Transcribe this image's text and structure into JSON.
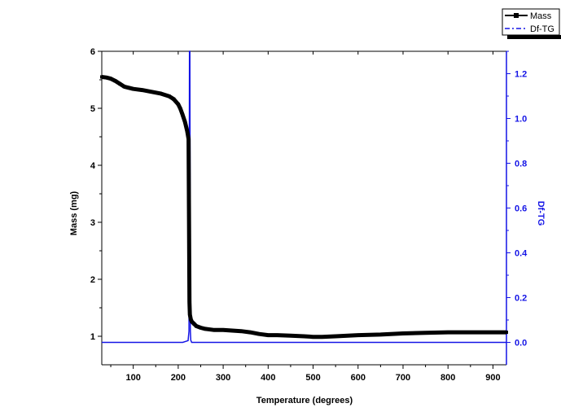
{
  "chart_data": {
    "type": "line",
    "title": "",
    "xlabel": "Temperature (degrees)",
    "ylabel_left": "Mass (mg)",
    "ylabel_right": "Df-TG",
    "xlim": [
      30,
      930
    ],
    "ylim_left": [
      0.5,
      6
    ],
    "ylim_right": [
      -0.1,
      1.3
    ],
    "x_ticks": [
      100,
      200,
      300,
      400,
      500,
      600,
      700,
      800,
      900
    ],
    "y_left_ticks": [
      1,
      2,
      3,
      4,
      5,
      6
    ],
    "y_right_ticks": [
      0.0,
      0.2,
      0.4,
      0.6,
      0.8,
      1.0,
      1.2
    ],
    "y_right_tick_labels": [
      "0.0",
      "0.2",
      "0.4",
      "0.6",
      "0.8",
      "1.0",
      "1.2"
    ],
    "grid": false,
    "legend_position": "top-right",
    "colors": {
      "mass": "#000000",
      "dftg": "#1414e6"
    },
    "series": [
      {
        "name": "Mass",
        "axis": "left",
        "marker": "square",
        "x": [
          30,
          40,
          50,
          60,
          70,
          80,
          90,
          100,
          120,
          140,
          160,
          180,
          190,
          200,
          205,
          210,
          215,
          220,
          223,
          225,
          226,
          228,
          230,
          235,
          240,
          250,
          260,
          280,
          300,
          320,
          340,
          360,
          380,
          400,
          420,
          450,
          480,
          500,
          520,
          550,
          600,
          650,
          700,
          750,
          800,
          850,
          900,
          930
        ],
        "y": [
          5.55,
          5.54,
          5.52,
          5.48,
          5.43,
          5.38,
          5.36,
          5.34,
          5.32,
          5.29,
          5.26,
          5.21,
          5.16,
          5.07,
          4.99,
          4.88,
          4.76,
          4.6,
          4.46,
          1.6,
          1.38,
          1.3,
          1.26,
          1.22,
          1.18,
          1.15,
          1.13,
          1.11,
          1.11,
          1.1,
          1.09,
          1.07,
          1.04,
          1.02,
          1.02,
          1.01,
          1.0,
          0.99,
          0.99,
          1.0,
          1.02,
          1.03,
          1.05,
          1.06,
          1.07,
          1.07,
          1.07,
          1.07
        ]
      },
      {
        "name": "Df-TG",
        "axis": "right",
        "marker": "none",
        "x": [
          30,
          100,
          150,
          200,
          210,
          218,
          222,
          224,
          225,
          226,
          227,
          228,
          230,
          240,
          300,
          400,
          500,
          600,
          700,
          800,
          900,
          930
        ],
        "y": [
          0.0,
          0.0,
          0.0,
          0.0,
          0.0,
          0.005,
          0.008,
          0.05,
          1.3,
          1.3,
          0.05,
          0.01,
          0.0,
          0.0,
          0.0,
          0.0,
          0.0,
          0.0,
          0.0,
          0.0,
          0.0,
          0.0
        ]
      }
    ]
  }
}
